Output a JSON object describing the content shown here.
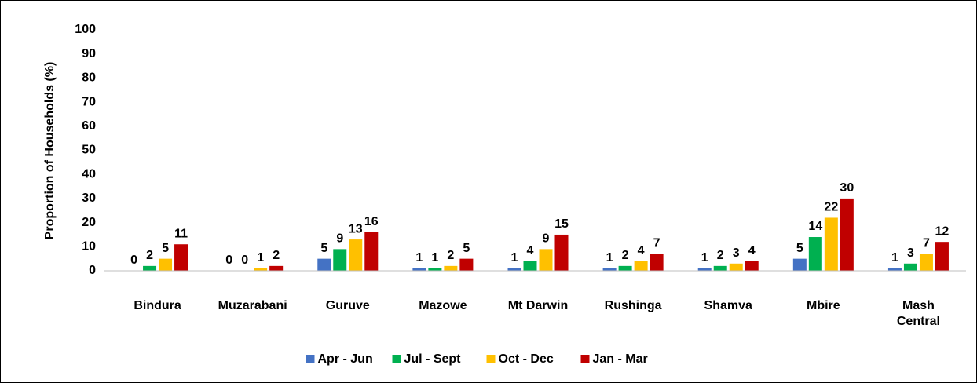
{
  "chart_data": {
    "type": "bar",
    "ylabel": "Proportion of Households (%)",
    "categories": [
      "Bindura",
      "Muzarabani",
      "Guruve",
      "Mazowe",
      "Mt Darwin",
      "Rushinga",
      "Shamva",
      "Mbire",
      "Mash Central"
    ],
    "series": [
      {
        "name": "Apr - Jun",
        "color": "#4472c4",
        "values": [
          0,
          0,
          5,
          1,
          1,
          1,
          1,
          5,
          1
        ]
      },
      {
        "name": "Jul - Sept",
        "color": "#00b050",
        "values": [
          2,
          0,
          9,
          1,
          4,
          2,
          2,
          14,
          3
        ]
      },
      {
        "name": "Oct - Dec",
        "color": "#ffc000",
        "values": [
          5,
          1,
          13,
          2,
          9,
          4,
          3,
          22,
          7
        ]
      },
      {
        "name": "Jan - Mar",
        "color": "#c00000",
        "values": [
          11,
          2,
          16,
          5,
          15,
          7,
          4,
          30,
          12
        ]
      }
    ],
    "ylim": [
      0,
      100
    ],
    "yticks": [
      0,
      10,
      20,
      30,
      40,
      50,
      60,
      70,
      80,
      90,
      100
    ],
    "grid": false,
    "legend": "bottom"
  }
}
